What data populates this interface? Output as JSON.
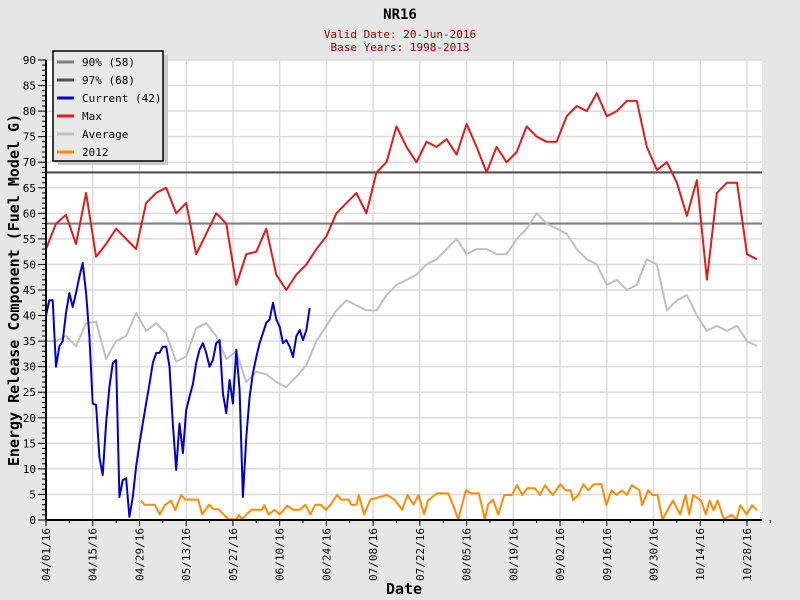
{
  "chart_data": {
    "type": "line",
    "title": "NR16",
    "subtitle_lines": [
      "Valid Date: 20-Jun-2016",
      "Base Years: 1998-2013"
    ],
    "xlabel": "Date",
    "ylabel": "Energy Release Component (Fuel Model G)",
    "x_unit": "days since 04/01/16",
    "xlim": [
      0,
      214.5
    ],
    "ylim": [
      0,
      90
    ],
    "y_ticks": [
      0,
      5,
      10,
      15,
      20,
      25,
      30,
      35,
      40,
      45,
      50,
      55,
      60,
      65,
      70,
      75,
      80,
      85,
      90
    ],
    "x_tick_labels": [
      "04/01/16",
      "04/15/16",
      "04/29/16",
      "05/13/16",
      "05/27/16",
      "06/10/16",
      "06/24/16",
      "07/08/16",
      "07/22/16",
      "08/05/16",
      "08/19/16",
      "09/02/16",
      "09/16/16",
      "09/30/16",
      "10/14/16",
      "10/28/16"
    ],
    "x_tick_step_days": 14,
    "grid": true,
    "legend_placement": "top-left",
    "reference_lines": [
      {
        "name": "90% (58)",
        "value": 58,
        "color": "#808080"
      },
      {
        "name": "97% (68)",
        "value": 68,
        "color": "#505050"
      }
    ],
    "series": [
      {
        "name": "Current (42)",
        "color": "#0000cc",
        "x_start": 0,
        "x_step": 1,
        "values": [
          40,
          43,
          43,
          30,
          34,
          35,
          40.5,
          44.4,
          41.7,
          44.4,
          47.6,
          50.3,
          44.4,
          35.9,
          22.8,
          22.5,
          12.3,
          8.8,
          18.9,
          26,
          30.7,
          31.3,
          4.5,
          7.8,
          8.2,
          0.6,
          4.5,
          10.4,
          15,
          18.9,
          22.8,
          26.6,
          30.7,
          32.7,
          32.7,
          33.9,
          33.9,
          30,
          18.9,
          9.8,
          18.9,
          13.1,
          21.5,
          24.1,
          26.6,
          30.7,
          33.3,
          34.6,
          32.7,
          30,
          31.3,
          34.6,
          35.2,
          24.8,
          20.9,
          27.4,
          22.8,
          33.3,
          25.4,
          4.5,
          16.2,
          24.1,
          28.8,
          31.9,
          34.6,
          36.6,
          38.6,
          39.2,
          42.5,
          39.2,
          37.8,
          34.6,
          35.2,
          33.9,
          31.9,
          35.9,
          37.2,
          35.2,
          37.2,
          41.5
        ]
      },
      {
        "name": "Max",
        "color": "#e01c1c",
        "x_start": 0,
        "x_step": 3,
        "values": [
          53,
          58,
          59.7,
          54,
          64,
          51.5,
          54,
          57,
          55,
          53,
          62,
          64,
          65,
          60,
          62,
          52,
          56,
          60,
          58,
          46,
          52,
          52.5,
          57,
          48,
          45,
          48,
          50,
          53,
          55.5,
          60,
          62,
          64,
          60,
          68,
          70,
          77,
          73,
          70,
          74,
          73,
          74.5,
          71.5,
          77.5,
          73,
          68,
          73,
          70,
          72,
          77,
          75,
          74,
          74,
          79,
          81,
          80,
          83.5,
          79,
          80,
          82,
          82,
          73,
          68.5,
          70,
          66,
          59.5,
          66.5,
          47,
          64,
          66,
          66,
          52,
          51
        ]
      },
      {
        "name": "Average",
        "color": "#c0c0c0",
        "x_start": 0,
        "x_step": 3,
        "values": [
          35,
          35,
          36,
          34,
          38.5,
          38.8,
          31.5,
          35,
          36,
          40.5,
          37,
          38.5,
          36.5,
          31,
          32,
          37.5,
          38.5,
          36,
          31.5,
          33,
          27,
          29,
          28.5,
          27,
          26,
          28,
          30.3,
          35,
          38,
          41,
          43,
          42,
          41,
          41,
          44,
          46,
          47,
          48,
          50,
          51,
          53,
          55,
          52,
          53,
          53,
          52,
          52,
          55,
          57,
          60,
          58,
          57,
          56,
          53,
          51,
          50,
          46,
          47,
          45,
          46,
          51,
          50,
          41,
          43,
          44,
          40,
          37,
          38,
          37,
          38,
          35,
          34
        ]
      },
      {
        "name": "2012",
        "color": "#ff8c00",
        "points": [
          [
            28.4,
            3.8
          ],
          [
            29.5,
            3
          ],
          [
            32.6,
            3
          ],
          [
            34.1,
            1.1
          ],
          [
            35.6,
            2.9
          ],
          [
            37.5,
            3.8
          ],
          [
            38.7,
            1.9
          ],
          [
            40.5,
            4.9
          ],
          [
            41.7,
            4
          ],
          [
            45.6,
            4
          ],
          [
            46.8,
            1.1
          ],
          [
            48.9,
            3
          ],
          [
            50.2,
            2.1
          ],
          [
            51.7,
            2.1
          ],
          [
            53.2,
            1.1
          ],
          [
            54.7,
            0.1
          ],
          [
            57,
            0.1
          ],
          [
            57.8,
            1
          ],
          [
            58.7,
            0.1
          ],
          [
            60.1,
            1.1
          ],
          [
            61.6,
            2
          ],
          [
            64.7,
            2
          ],
          [
            65.4,
            2.9
          ],
          [
            66.7,
            1.1
          ],
          [
            68.5,
            2
          ],
          [
            70,
            1.1
          ],
          [
            72.3,
            2.8
          ],
          [
            73.9,
            2
          ],
          [
            76.1,
            2
          ],
          [
            77.7,
            3
          ],
          [
            79.2,
            1.1
          ],
          [
            80.7,
            3
          ],
          [
            82.3,
            3
          ],
          [
            83.8,
            2
          ],
          [
            85.3,
            3
          ],
          [
            87.2,
            4.9
          ],
          [
            88.4,
            4
          ],
          [
            90.7,
            4
          ],
          [
            91.4,
            3
          ],
          [
            93,
            3
          ],
          [
            93.7,
            4.9
          ],
          [
            95.3,
            1.1
          ],
          [
            97.2,
            4
          ],
          [
            102.1,
            4.9
          ],
          [
            104.4,
            4
          ],
          [
            106.7,
            2
          ],
          [
            108.3,
            4.9
          ],
          [
            110.1,
            3
          ],
          [
            111.6,
            4.9
          ],
          [
            113.3,
            1.1
          ],
          [
            114.4,
            3.8
          ],
          [
            117.1,
            5.2
          ],
          [
            120.5,
            5.2
          ],
          [
            122,
            2.9
          ],
          [
            123.5,
            0.1
          ],
          [
            125.8,
            5.8
          ],
          [
            127.4,
            5.2
          ],
          [
            129.7,
            5.2
          ],
          [
            131.5,
            0.1
          ],
          [
            132.4,
            3
          ],
          [
            133.9,
            4
          ],
          [
            135.5,
            1.1
          ],
          [
            137.3,
            4.9
          ],
          [
            139.6,
            4.9
          ],
          [
            141.1,
            6.8
          ],
          [
            142.7,
            4.9
          ],
          [
            144.2,
            6.2
          ],
          [
            146.5,
            6.2
          ],
          [
            148,
            4.9
          ],
          [
            149.5,
            6.8
          ],
          [
            151.8,
            4.9
          ],
          [
            154.1,
            7
          ],
          [
            155.7,
            5.8
          ],
          [
            157.2,
            5.8
          ],
          [
            157.9,
            3.9
          ],
          [
            159.5,
            4.9
          ],
          [
            161,
            7
          ],
          [
            162.5,
            5.8
          ],
          [
            164.1,
            7
          ],
          [
            166.4,
            7
          ],
          [
            167.9,
            2.9
          ],
          [
            169.4,
            5.8
          ],
          [
            170.9,
            4.9
          ],
          [
            172.5,
            5.8
          ],
          [
            174,
            4.9
          ],
          [
            175.5,
            6.8
          ],
          [
            177.8,
            5.8
          ],
          [
            178.6,
            2.9
          ],
          [
            180.4,
            5.8
          ],
          [
            181.7,
            4.9
          ],
          [
            183.2,
            4.9
          ],
          [
            184.7,
            0.1
          ],
          [
            186.2,
            1.9
          ],
          [
            187.8,
            3.8
          ],
          [
            190,
            1.1
          ],
          [
            191.6,
            4.9
          ],
          [
            192.7,
            1.1
          ],
          [
            193.9,
            4.9
          ],
          [
            196.2,
            3.8
          ],
          [
            197.7,
            1.1
          ],
          [
            198.8,
            3.8
          ],
          [
            200,
            1.9
          ],
          [
            201.2,
            3.8
          ],
          [
            203.1,
            0.1
          ],
          [
            205.4,
            1
          ],
          [
            206.9,
            0.1
          ],
          [
            208,
            2.9
          ],
          [
            209.9,
            1.1
          ],
          [
            211.5,
            2.9
          ],
          [
            213,
            1.9
          ]
        ]
      }
    ],
    "legend": [
      {
        "label": "90% (58)",
        "color": "#808080"
      },
      {
        "label": "97% (68)",
        "color": "#505050"
      },
      {
        "label": "Current (42)",
        "color": "#0000cc"
      },
      {
        "label": "Max",
        "color": "#e01c1c"
      },
      {
        "label": "Average",
        "color": "#c0c0c0"
      },
      {
        "label": "2012",
        "color": "#ff8c00"
      }
    ]
  }
}
